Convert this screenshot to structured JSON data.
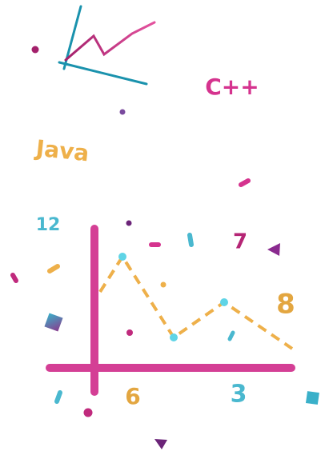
{
  "labels": {
    "cpp": "C++",
    "java": "Java",
    "twelve": "12",
    "seven": "7",
    "eight": "8",
    "six": "6",
    "three": "3"
  }
}
